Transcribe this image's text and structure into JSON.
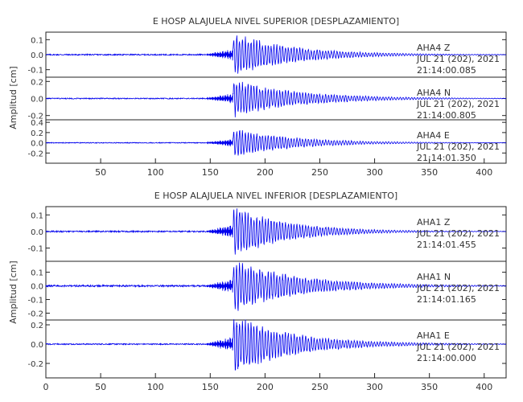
{
  "chart_data": [
    {
      "type": "line",
      "title": "E HOSP ALAJUELA NIVEL SUPERIOR [DESPLAZAMIENTO]",
      "ylabel": "Amplitud [cm]",
      "xlim": [
        0,
        420
      ],
      "x_ticks": [
        "50",
        "100",
        "150",
        "200",
        "250",
        "300",
        "350",
        "400"
      ],
      "panels": [
        {
          "station": "AHA4",
          "component": "Z",
          "date": "JUL 21 (202), 2021",
          "time": "21:14:00.085",
          "ylim": [
            -0.15,
            0.15
          ],
          "y_ticks": [
            "0.1",
            "0.0",
            "-0.1"
          ],
          "onset": 171,
          "peak": 0.15,
          "pre_noise": 0.004,
          "decay": 55
        },
        {
          "station": "AHA4",
          "component": "N",
          "date": "JUL 21 (202), 2021",
          "time": "21:14:00.805",
          "ylim": [
            -0.25,
            0.25
          ],
          "y_ticks": [
            "0.2",
            "0.0",
            "-0.2"
          ],
          "onset": 171,
          "peak": 0.23,
          "pre_noise": 0.006,
          "decay": 60
        },
        {
          "station": "AHA4",
          "component": "E",
          "date": "JUL 21 (202), 2021",
          "time": "21:14:01.350",
          "ylim": [
            -0.4,
            0.45
          ],
          "y_ticks": [
            "0.4",
            "0.2",
            "0.0",
            "-0.2"
          ],
          "onset": 171,
          "peak": 0.3,
          "pre_noise": 0.008,
          "decay": 55
        }
      ]
    },
    {
      "type": "line",
      "title": "E HOSP ALAJUELA NIVEL INFERIOR [DESPLAZAMIENTO]",
      "ylabel": "Amplitud [cm]",
      "xlim": [
        0,
        420
      ],
      "x_ticks": [
        "0",
        "50",
        "100",
        "150",
        "200",
        "250",
        "300",
        "350",
        "400"
      ],
      "panels": [
        {
          "station": "AHA1",
          "component": "Z",
          "date": "JUL 21 (202), 2021",
          "time": "21:14:01.455",
          "ylim": [
            -0.18,
            0.15
          ],
          "y_ticks": [
            "0.1",
            "0.0",
            "-0.1"
          ],
          "onset": 171,
          "peak": 0.16,
          "pre_noise": 0.004,
          "decay": 50
        },
        {
          "station": "AHA1",
          "component": "N",
          "date": "JUL 21 (202), 2021",
          "time": "21:14:01.165",
          "ylim": [
            -0.25,
            0.18
          ],
          "y_ticks": [
            "0.1",
            "0.0",
            "-0.1",
            "-0.2"
          ],
          "onset": 171,
          "peak": 0.2,
          "pre_noise": 0.006,
          "decay": 60
        },
        {
          "station": "AHA1",
          "component": "E",
          "date": "JUL 21 (202), 2021",
          "time": "21:14:00.000",
          "ylim": [
            -0.35,
            0.25
          ],
          "y_ticks": [
            "0.2",
            "0.0",
            "-0.2"
          ],
          "onset": 171,
          "peak": 0.32,
          "pre_noise": 0.006,
          "decay": 55
        }
      ]
    }
  ]
}
